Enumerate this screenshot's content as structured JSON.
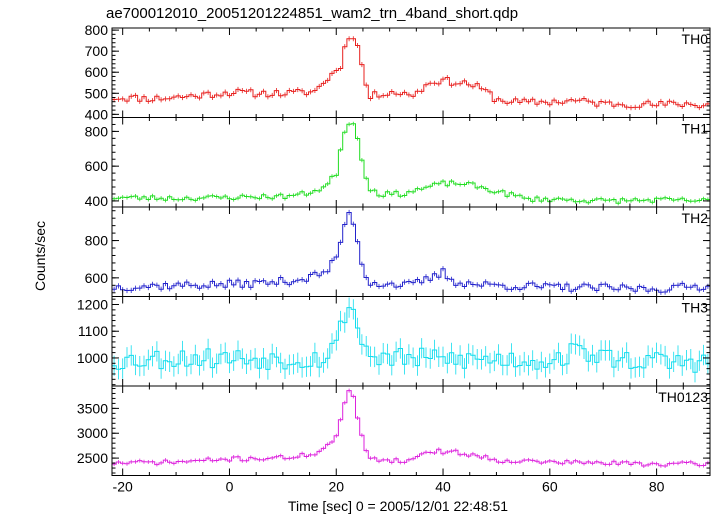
{
  "chart_data": {
    "type": "line",
    "title": "ae700012010_20051201224851_wam2_trn_4band_short.qdp",
    "xlabel": "Time [sec] 0 = 2005/12/01 22:48:51",
    "ylabel": "Counts/sec",
    "xlim": [
      -22,
      90
    ],
    "xticks": [
      -20,
      0,
      20,
      40,
      60,
      80
    ],
    "grid": false,
    "step": 0.8,
    "series": [
      {
        "name": "TH0",
        "color": "#e8201e",
        "ylim": [
          385,
          810
        ],
        "yticks": [
          400,
          500,
          600,
          700,
          800
        ],
        "x": [
          -22,
          -14,
          -8,
          0,
          4,
          8,
          12,
          16,
          18,
          20,
          21,
          22,
          23,
          24,
          25,
          26,
          30,
          34,
          36,
          38,
          40,
          45,
          48,
          50,
          55,
          60,
          65,
          70,
          75,
          80,
          85,
          88,
          90
        ],
        "y": [
          480,
          475,
          485,
          505,
          500,
          500,
          500,
          510,
          560,
          610,
          640,
          760,
          790,
          720,
          620,
          480,
          510,
          490,
          520,
          560,
          560,
          545,
          510,
          470,
          455,
          460,
          465,
          450,
          450,
          445,
          450,
          445,
          450
        ],
        "amp": 18,
        "err": 12,
        "seed": 11
      },
      {
        "name": "TH1",
        "color": "#22dd22",
        "ylim": [
          365,
          880
        ],
        "yticks": [
          400,
          600,
          800
        ],
        "x": [
          -22,
          -10,
          0,
          6,
          10,
          14,
          18,
          20,
          21,
          22,
          23,
          24,
          25,
          26,
          28,
          32,
          36,
          40,
          44,
          48,
          52,
          56,
          60,
          70,
          80,
          90
        ],
        "y": [
          420,
          415,
          420,
          425,
          425,
          440,
          480,
          560,
          730,
          850,
          860,
          760,
          620,
          480,
          440,
          440,
          470,
          500,
          500,
          470,
          440,
          410,
          410,
          400,
          405,
          400
        ],
        "amp": 15,
        "err": 12,
        "seed": 23
      },
      {
        "name": "TH2",
        "color": "#2222cc",
        "ylim": [
          500,
          980
        ],
        "yticks": [
          600,
          800
        ],
        "x": [
          -22,
          -10,
          0,
          8,
          14,
          18,
          20,
          21,
          22,
          23,
          24,
          25,
          26,
          28,
          34,
          38,
          40,
          42,
          46,
          50,
          60,
          70,
          80,
          90
        ],
        "y": [
          550,
          560,
          565,
          575,
          595,
          630,
          700,
          820,
          940,
          930,
          800,
          650,
          580,
          570,
          560,
          600,
          630,
          580,
          565,
          560,
          550,
          545,
          540,
          560
        ],
        "amp": 22,
        "err": 14,
        "seed": 37
      },
      {
        "name": "TH3",
        "color": "#11ddee",
        "ylim": [
          895,
          1230
        ],
        "yticks": [
          1000,
          1100,
          1200
        ],
        "x": [
          -22,
          -10,
          0,
          10,
          18,
          20,
          21,
          22,
          23,
          24,
          25,
          26,
          30,
          40,
          50,
          60,
          66,
          70,
          80,
          90
        ],
        "y": [
          990,
          1000,
          1000,
          995,
          1000,
          1060,
          1120,
          1200,
          1190,
          1120,
          1060,
          1010,
          1000,
          995,
          995,
          990,
          1030,
          1000,
          985,
          985
        ],
        "amp": 40,
        "err": 38,
        "seed": 53
      },
      {
        "name": "TH0123",
        "color": "#dd22dd",
        "ylim": [
          2150,
          3950
        ],
        "yticks": [
          2500,
          3000,
          3500
        ],
        "x": [
          -22,
          -10,
          0,
          8,
          12,
          16,
          18,
          20,
          21,
          22,
          23,
          24,
          25,
          26,
          28,
          34,
          36,
          38,
          42,
          46,
          50,
          60,
          70,
          80,
          90
        ],
        "y": [
          2400,
          2420,
          2480,
          2500,
          2520,
          2600,
          2700,
          2950,
          3300,
          3850,
          3800,
          3300,
          2850,
          2550,
          2470,
          2440,
          2600,
          2640,
          2620,
          2560,
          2460,
          2420,
          2400,
          2380,
          2380
        ],
        "amp": 45,
        "err": 40,
        "seed": 71
      }
    ]
  }
}
